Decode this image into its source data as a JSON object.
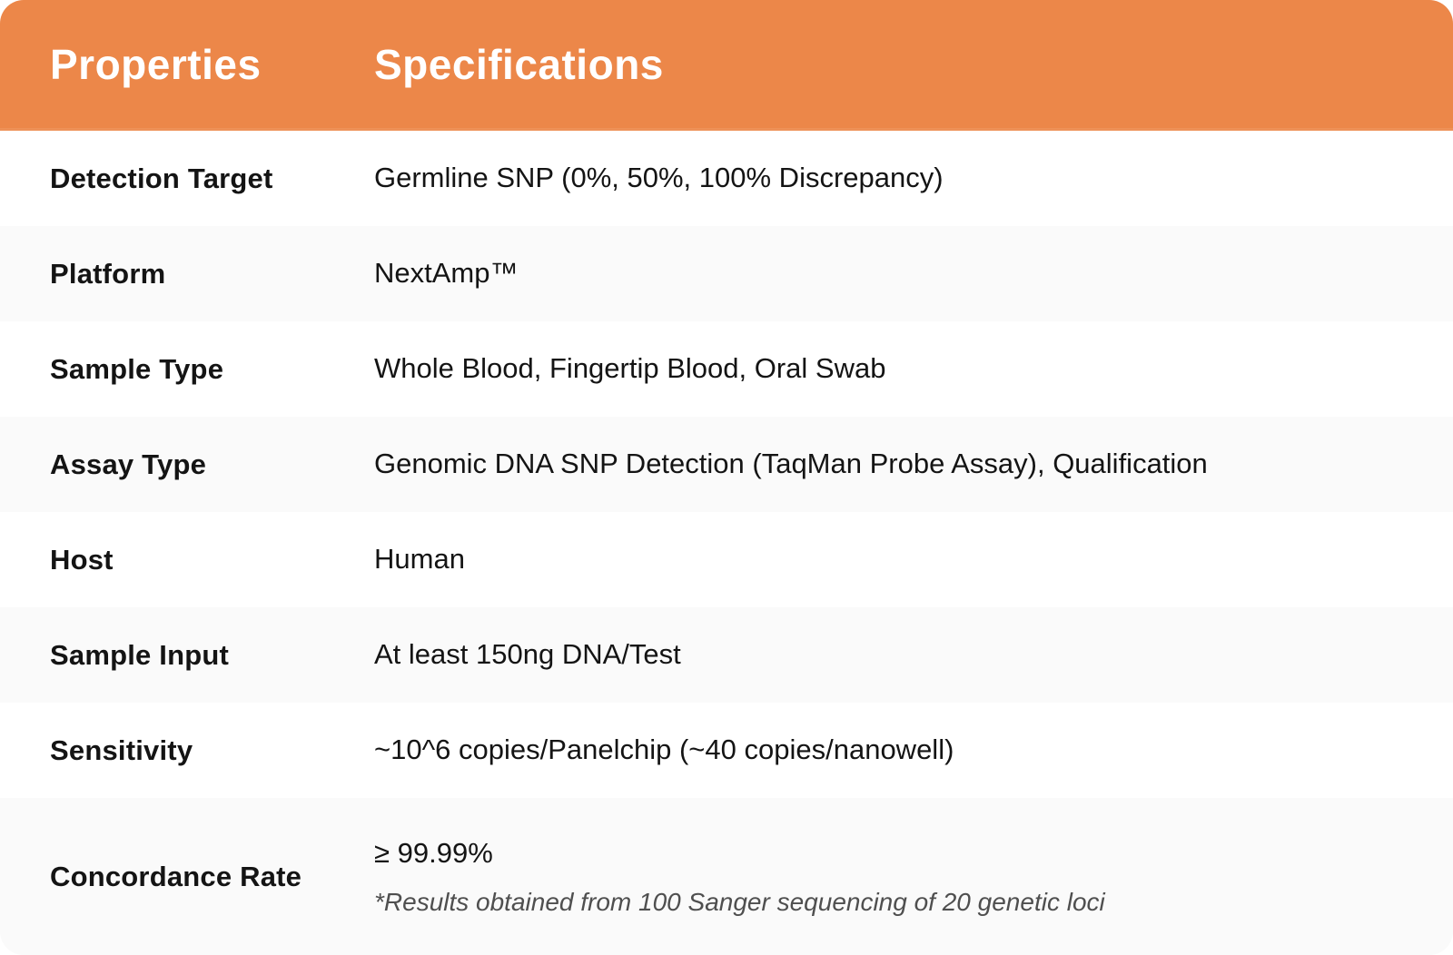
{
  "table": {
    "columns": [
      "Properties",
      "Specifications"
    ],
    "rows": [
      {
        "property": "Detection Target",
        "specification": "Germline SNP (0%, 50%, 100% Discrepancy)"
      },
      {
        "property": "Platform",
        "specification": "NextAmp™"
      },
      {
        "property": "Sample Type",
        "specification": "Whole Blood, Fingertip Blood, Oral Swab"
      },
      {
        "property": "Assay Type",
        "specification": "Genomic DNA SNP Detection (TaqMan Probe Assay), Qualification"
      },
      {
        "property": "Host",
        "specification": "Human"
      },
      {
        "property": "Sample Input",
        "specification": "At least 150ng DNA/Test"
      },
      {
        "property": "Sensitivity",
        "specification": "~10^6 copies/Panelchip (~40 copies/nanowell)"
      },
      {
        "property": "Concordance Rate",
        "specification": "≥ 99.99%",
        "note": "*Results obtained from 100 Sanger sequencing of 20 genetic loci"
      }
    ]
  },
  "colors": {
    "header_bg": "#EC8749",
    "header_text": "#FFFFFF",
    "row_bg": "#FFFFFF",
    "row_alt_bg": "#FAFAFA",
    "body_text": "#141414",
    "note_text": "#4F4F4F"
  }
}
